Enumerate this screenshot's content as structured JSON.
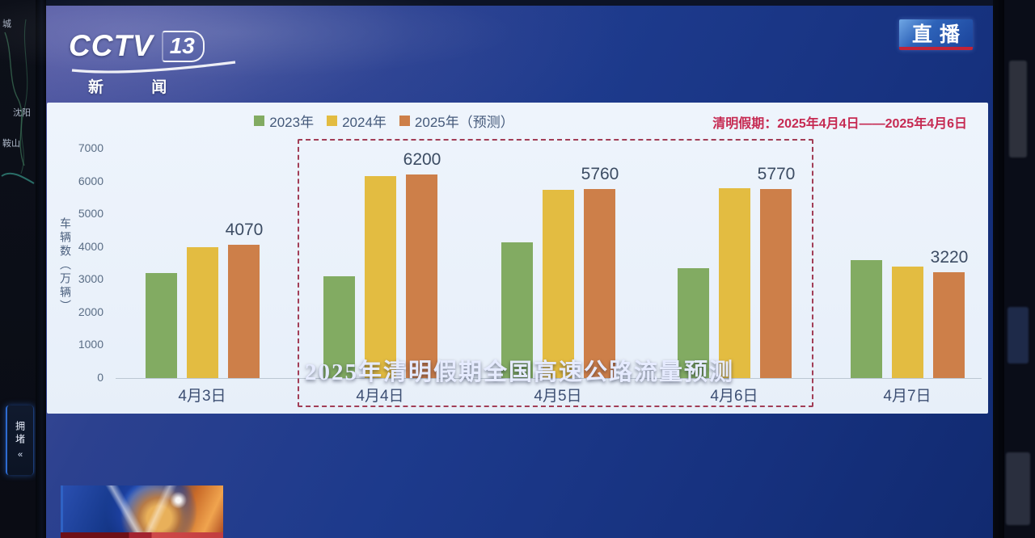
{
  "broadcast": {
    "channel": {
      "name": "CCTV",
      "number": "13",
      "subtitle": "新 闻"
    },
    "live_badge": "直播",
    "program_title": "2025年清明假期全国高速公路流量预测"
  },
  "side_panel": {
    "map_labels": [
      {
        "text": "城"
      },
      {
        "text": "沈阳"
      },
      {
        "text": "鞍山"
      }
    ],
    "congestion_tab": {
      "label": "拥堵",
      "arrow": "«"
    }
  },
  "chart": {
    "annotation": "清明假期：2025年4月4日——2025年4月6日",
    "y_axis_label": "车辆数（万辆）",
    "y_ticks": [
      7000,
      6000,
      5000,
      4000,
      3000,
      2000,
      1000,
      0
    ],
    "legend": [
      {
        "label": "2023年",
        "color": "#82ab62"
      },
      {
        "label": "2024年",
        "color": "#e3bc41"
      },
      {
        "label": "2025年（预测）",
        "color": "#cd7f49"
      }
    ]
  },
  "chart_data": {
    "type": "bar",
    "title": "2025年清明假期全国高速公路流量预测",
    "ylabel": "车辆数（万辆）",
    "ylim": [
      0,
      7000
    ],
    "grid": false,
    "legend_position": "top-center",
    "categories": [
      "4月3日",
      "4月4日",
      "4月5日",
      "4月6日",
      "4月7日"
    ],
    "series": [
      {
        "name": "2023年",
        "color": "#82ab62",
        "values": [
          3200,
          3100,
          4150,
          3350,
          3600
        ]
      },
      {
        "name": "2024年",
        "color": "#e3bc41",
        "values": [
          4000,
          6150,
          5750,
          5800,
          3400
        ]
      },
      {
        "name": "2025年（预测）",
        "color": "#cd7f49",
        "values": [
          4070,
          6200,
          5760,
          5770,
          3220
        ]
      }
    ],
    "data_labels": [
      "4070",
      "6200",
      "5760",
      "5770",
      "3220"
    ],
    "data_label_series": "2025年（预测）",
    "highlight": {
      "categories": [
        "4月4日",
        "4月5日",
        "4月6日"
      ],
      "style": "dashed-red-box",
      "note": "清明假期：2025年4月4日——2025年4月6日"
    }
  }
}
